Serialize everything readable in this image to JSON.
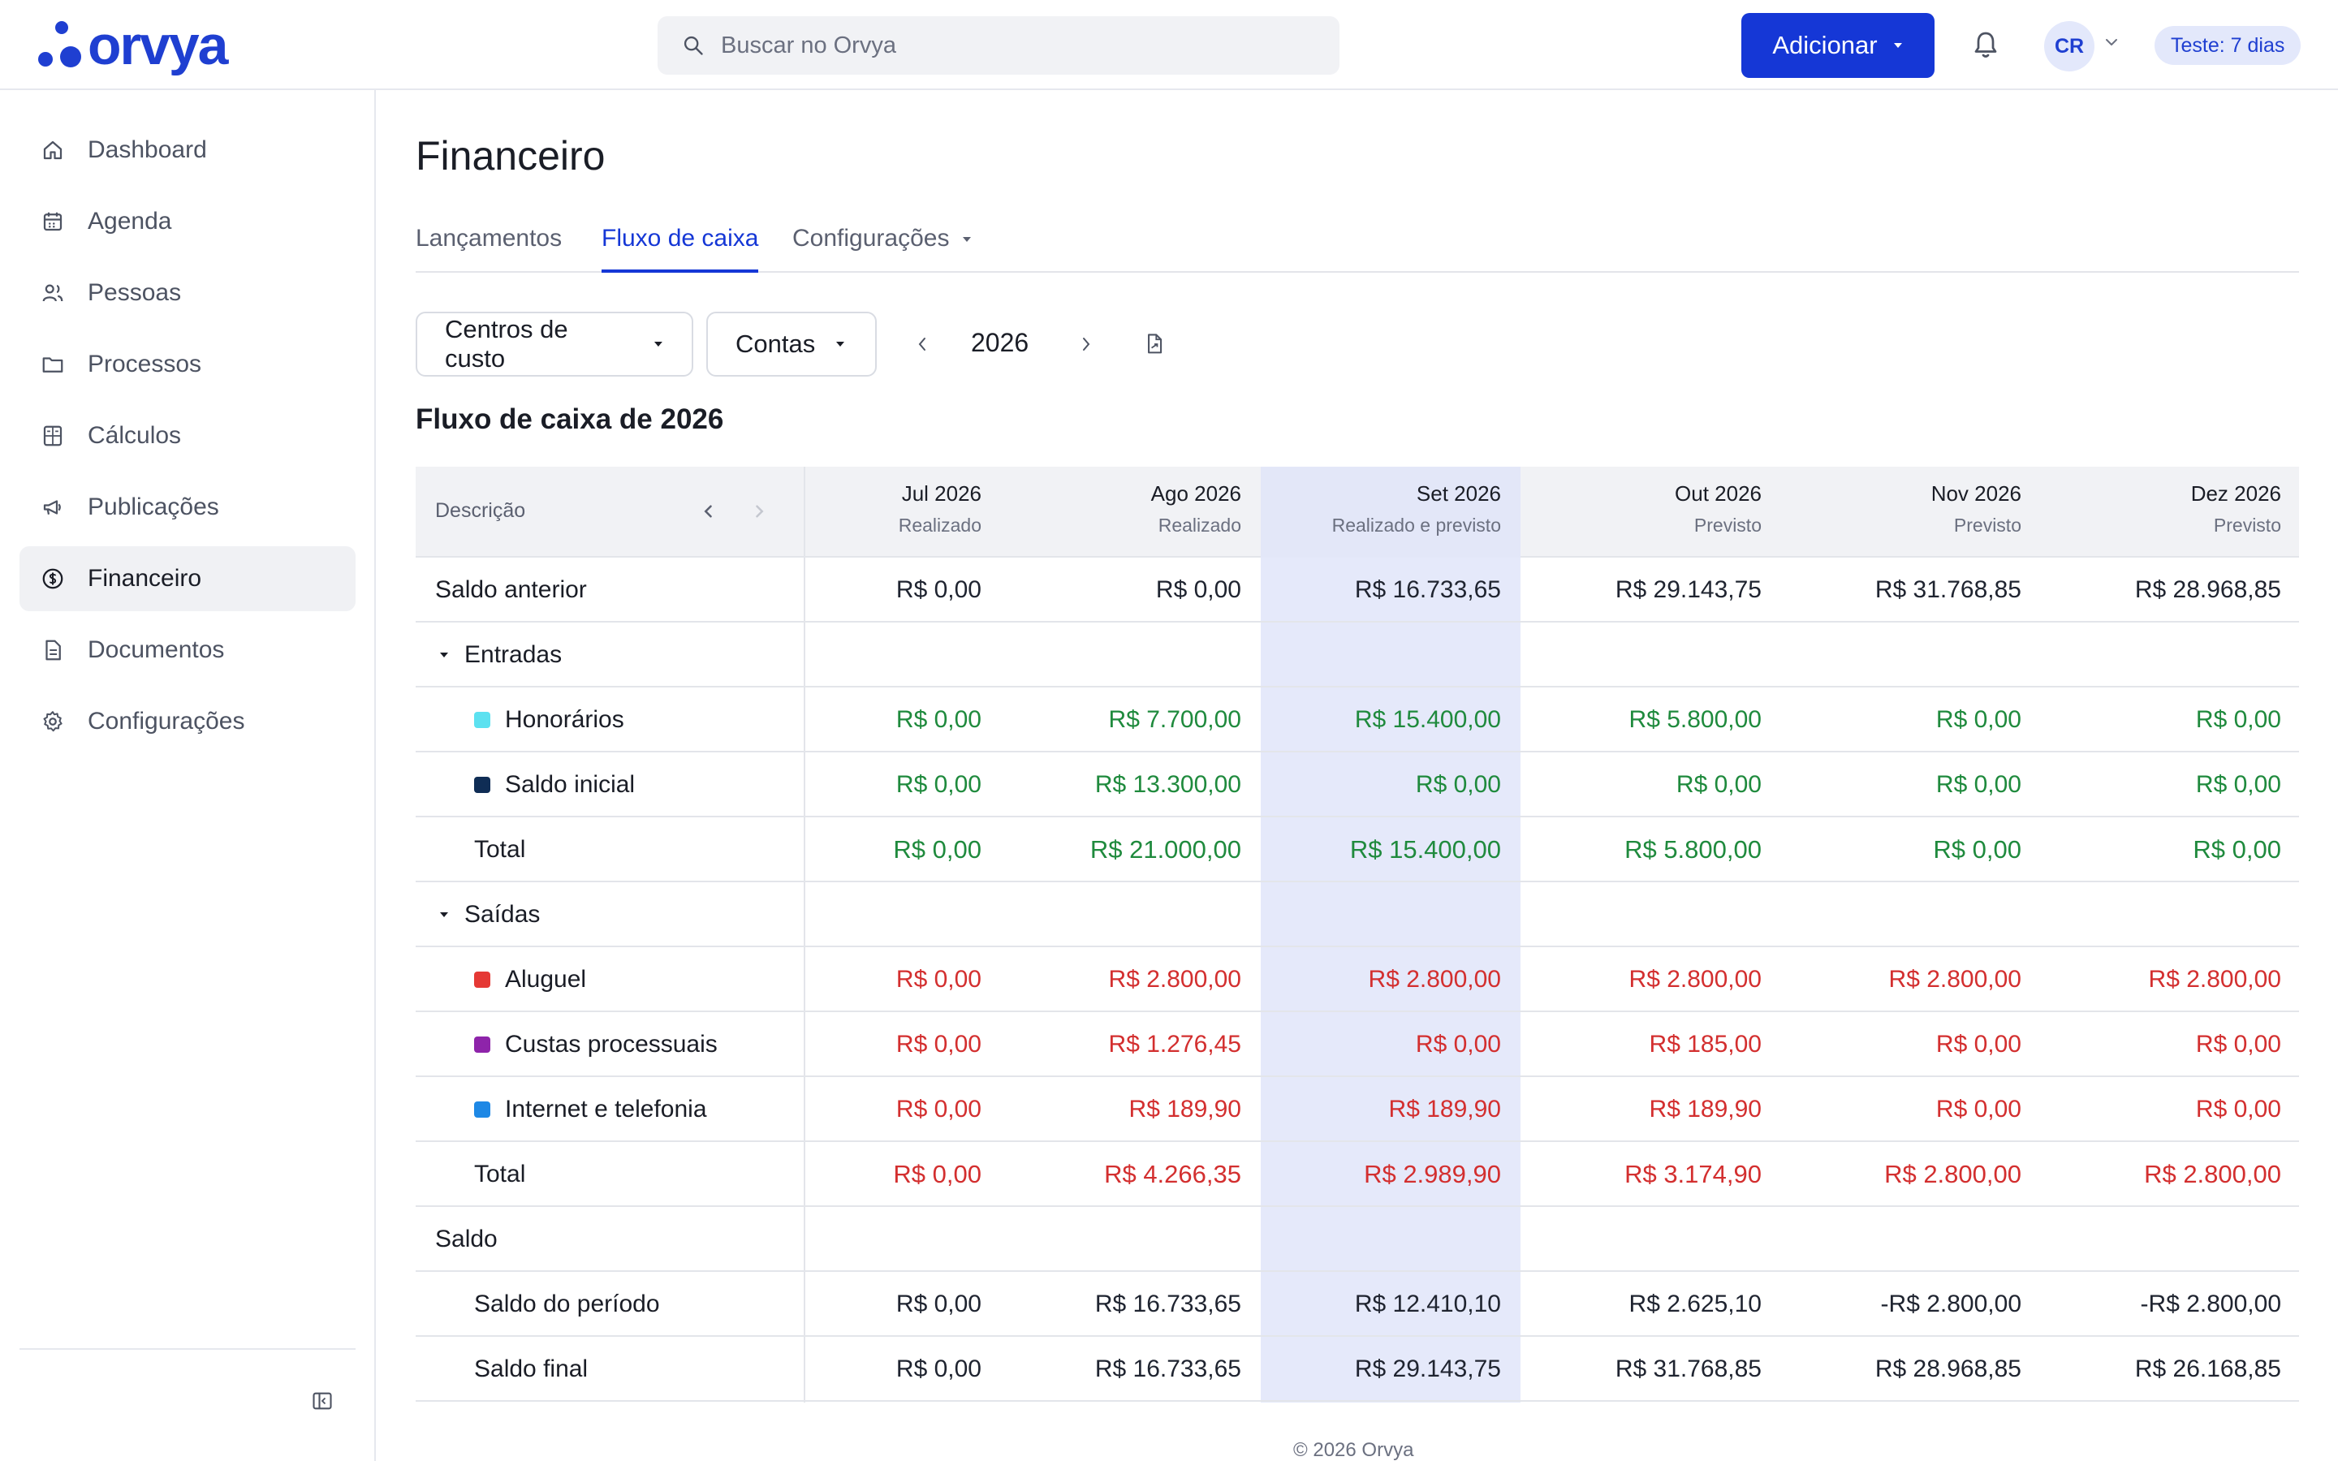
{
  "brand": {
    "name": "orvya",
    "color": "#1f3fd1"
  },
  "header": {
    "search_placeholder": "Buscar no Orvya",
    "add_button": "Adicionar",
    "avatar_initials": "CR",
    "trial_badge": "Teste: 7 dias"
  },
  "sidebar": {
    "items": [
      {
        "label": "Dashboard",
        "icon": "home-icon"
      },
      {
        "label": "Agenda",
        "icon": "calendar-icon"
      },
      {
        "label": "Pessoas",
        "icon": "people-icon"
      },
      {
        "label": "Processos",
        "icon": "folder-icon"
      },
      {
        "label": "Cálculos",
        "icon": "calculator-icon"
      },
      {
        "label": "Publicações",
        "icon": "megaphone-icon"
      },
      {
        "label": "Financeiro",
        "icon": "dollar-circle-icon",
        "active": true
      },
      {
        "label": "Documentos",
        "icon": "document-icon"
      },
      {
        "label": "Configurações",
        "icon": "gear-icon"
      }
    ]
  },
  "main": {
    "title": "Financeiro",
    "tabs": [
      {
        "label": "Lançamentos"
      },
      {
        "label": "Fluxo de caixa",
        "active": true
      },
      {
        "label": "Configurações"
      }
    ],
    "filters": {
      "cost_centers": "Centros de custo",
      "accounts": "Contas",
      "year": "2026"
    },
    "section_title": "Fluxo de caixa de 2026",
    "table": {
      "description_header": "Descrição",
      "columns": [
        {
          "month": "Jul 2026",
          "status": "Realizado"
        },
        {
          "month": "Ago 2026",
          "status": "Realizado"
        },
        {
          "month": "Set 2026",
          "status": "Realizado e previsto",
          "current": true
        },
        {
          "month": "Out 2026",
          "status": "Previsto"
        },
        {
          "month": "Nov 2026",
          "status": "Previsto"
        },
        {
          "month": "Dez 2026",
          "status": "Previsto"
        }
      ],
      "rows": [
        {
          "label": "Saldo anterior",
          "type": "plain",
          "values": [
            "R$ 0,00",
            "R$ 0,00",
            "R$ 16.733,65",
            "R$ 29.143,75",
            "R$ 31.768,85",
            "R$ 28.968,85"
          ]
        },
        {
          "label": "Entradas",
          "type": "group"
        },
        {
          "label": "Honorários",
          "type": "income",
          "color": "#5ce1f0",
          "values": [
            "R$ 0,00",
            "R$ 7.700,00",
            "R$ 15.400,00",
            "R$ 5.800,00",
            "R$ 0,00",
            "R$ 0,00"
          ]
        },
        {
          "label": "Saldo inicial",
          "type": "income",
          "color": "#0f2d55",
          "values": [
            "R$ 0,00",
            "R$ 13.300,00",
            "R$ 0,00",
            "R$ 0,00",
            "R$ 0,00",
            "R$ 0,00"
          ]
        },
        {
          "label": "Total",
          "type": "income-total",
          "values": [
            "R$ 0,00",
            "R$ 21.000,00",
            "R$ 15.400,00",
            "R$ 5.800,00",
            "R$ 0,00",
            "R$ 0,00"
          ]
        },
        {
          "label": "Saídas",
          "type": "group"
        },
        {
          "label": "Aluguel",
          "type": "expense",
          "color": "#e53935",
          "values": [
            "R$ 0,00",
            "R$ 2.800,00",
            "R$ 2.800,00",
            "R$ 2.800,00",
            "R$ 2.800,00",
            "R$ 2.800,00"
          ]
        },
        {
          "label": "Custas processuais",
          "type": "expense",
          "color": "#8e24aa",
          "values": [
            "R$ 0,00",
            "R$ 1.276,45",
            "R$ 0,00",
            "R$ 185,00",
            "R$ 0,00",
            "R$ 0,00"
          ]
        },
        {
          "label": "Internet e telefonia",
          "type": "expense",
          "color": "#1e88e5",
          "values": [
            "R$ 0,00",
            "R$ 189,90",
            "R$ 189,90",
            "R$ 189,90",
            "R$ 0,00",
            "R$ 0,00"
          ]
        },
        {
          "label": "Total",
          "type": "expense-total",
          "values": [
            "R$ 0,00",
            "R$ 4.266,35",
            "R$ 2.989,90",
            "R$ 3.174,90",
            "R$ 2.800,00",
            "R$ 2.800,00"
          ]
        },
        {
          "label": "Saldo",
          "type": "section"
        },
        {
          "label": "Saldo do período",
          "type": "balance",
          "values": [
            "R$ 0,00",
            "R$ 16.733,65",
            "R$ 12.410,10",
            "R$ 2.625,10",
            "-R$ 2.800,00",
            "-R$ 2.800,00"
          ]
        },
        {
          "label": "Saldo final",
          "type": "balance",
          "values": [
            "R$ 0,00",
            "R$ 16.733,65",
            "R$ 29.143,75",
            "R$ 31.768,85",
            "R$ 28.968,85",
            "R$ 26.168,85"
          ]
        }
      ]
    }
  },
  "footer": "© 2026 Orvya",
  "colors": {
    "accent": "#1537d6",
    "positive": "#1f8a3d",
    "negative": "#d32f2f",
    "current_column": "#e5e9fa"
  }
}
